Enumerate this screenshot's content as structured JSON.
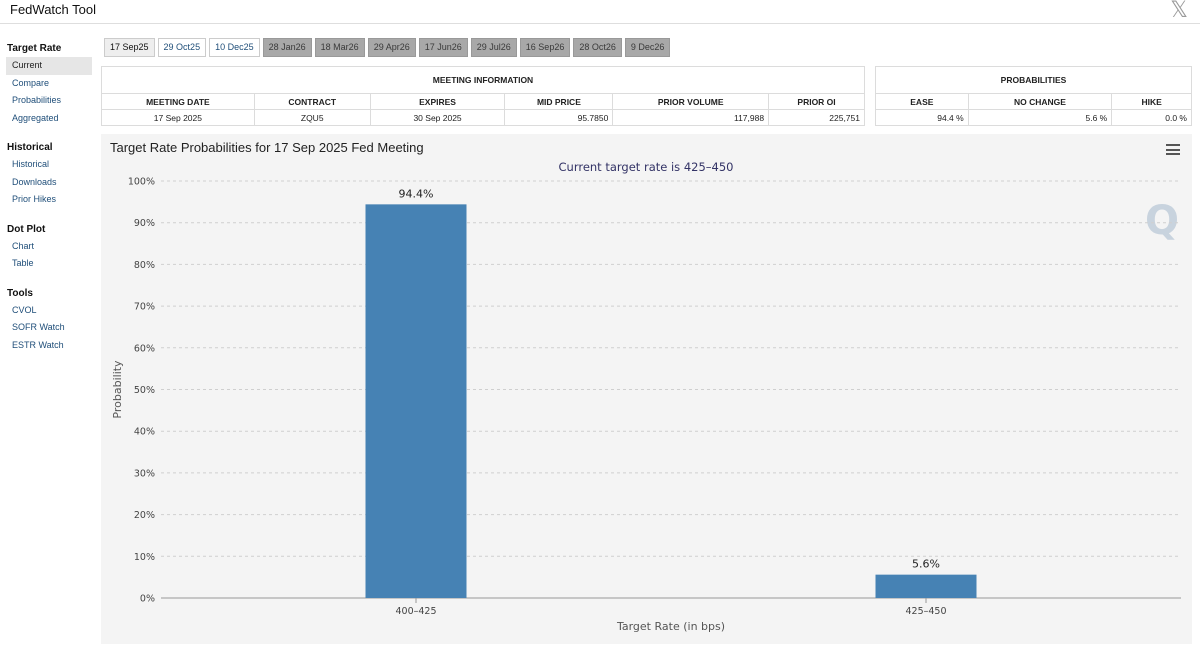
{
  "app": {
    "title": "FedWatch Tool",
    "close_glyph": "𝕏"
  },
  "sidebar": {
    "sections": [
      {
        "heading": "Target Rate",
        "items": [
          "Current",
          "Compare",
          "Probabilities",
          "Aggregated"
        ]
      },
      {
        "heading": "Historical",
        "items": [
          "Historical",
          "Downloads",
          "Prior Hikes"
        ]
      },
      {
        "heading": "Dot Plot",
        "items": [
          "Chart",
          "Table"
        ]
      },
      {
        "heading": "Tools",
        "items": [
          "CVOL",
          "SOFR Watch",
          "ESTR Watch"
        ]
      }
    ],
    "active_item": "Current"
  },
  "tabs": [
    {
      "label": "17 Sep25",
      "state": "selected"
    },
    {
      "label": "29 Oct25",
      "state": "normal"
    },
    {
      "label": "10 Dec25",
      "state": "normal"
    },
    {
      "label": "28 Jan26",
      "state": "disabled"
    },
    {
      "label": "18 Mar26",
      "state": "disabled"
    },
    {
      "label": "29 Apr26",
      "state": "disabled"
    },
    {
      "label": "17 Jun26",
      "state": "disabled"
    },
    {
      "label": "29 Jul26",
      "state": "disabled"
    },
    {
      "label": "16 Sep26",
      "state": "disabled"
    },
    {
      "label": "28 Oct26",
      "state": "disabled"
    },
    {
      "label": "9 Dec26",
      "state": "disabled"
    }
  ],
  "meeting_info": {
    "title": "MEETING INFORMATION",
    "headers": [
      "MEETING DATE",
      "CONTRACT",
      "EXPIRES",
      "MID PRICE",
      "PRIOR VOLUME",
      "PRIOR OI"
    ],
    "row": [
      "17 Sep 2025",
      "ZQU5",
      "30 Sep 2025",
      "95.7850",
      "117,988",
      "225,751"
    ]
  },
  "probabilities": {
    "title": "PROBABILITIES",
    "headers": [
      "EASE",
      "NO CHANGE",
      "HIKE"
    ],
    "row": [
      "94.4 %",
      "5.6 %",
      "0.0 %"
    ]
  },
  "chart_data": {
    "type": "bar",
    "title": "Target Rate Probabilities for 17 Sep 2025 Fed Meeting",
    "subtitle": "Current target rate is 425–450",
    "categories": [
      "400–425",
      "425–450"
    ],
    "values": [
      94.4,
      5.6
    ],
    "data_labels": [
      "94.4%",
      "5.6%"
    ],
    "xlabel": "Target Rate (in bps)",
    "ylabel": "Probability",
    "ylim": [
      0,
      100
    ],
    "yticks": [
      0,
      10,
      20,
      30,
      40,
      50,
      60,
      70,
      80,
      90,
      100
    ],
    "ytick_suffix": "%",
    "grid": true,
    "bar_color": "#4682b4"
  },
  "watermark": {
    "letter": "Q"
  }
}
